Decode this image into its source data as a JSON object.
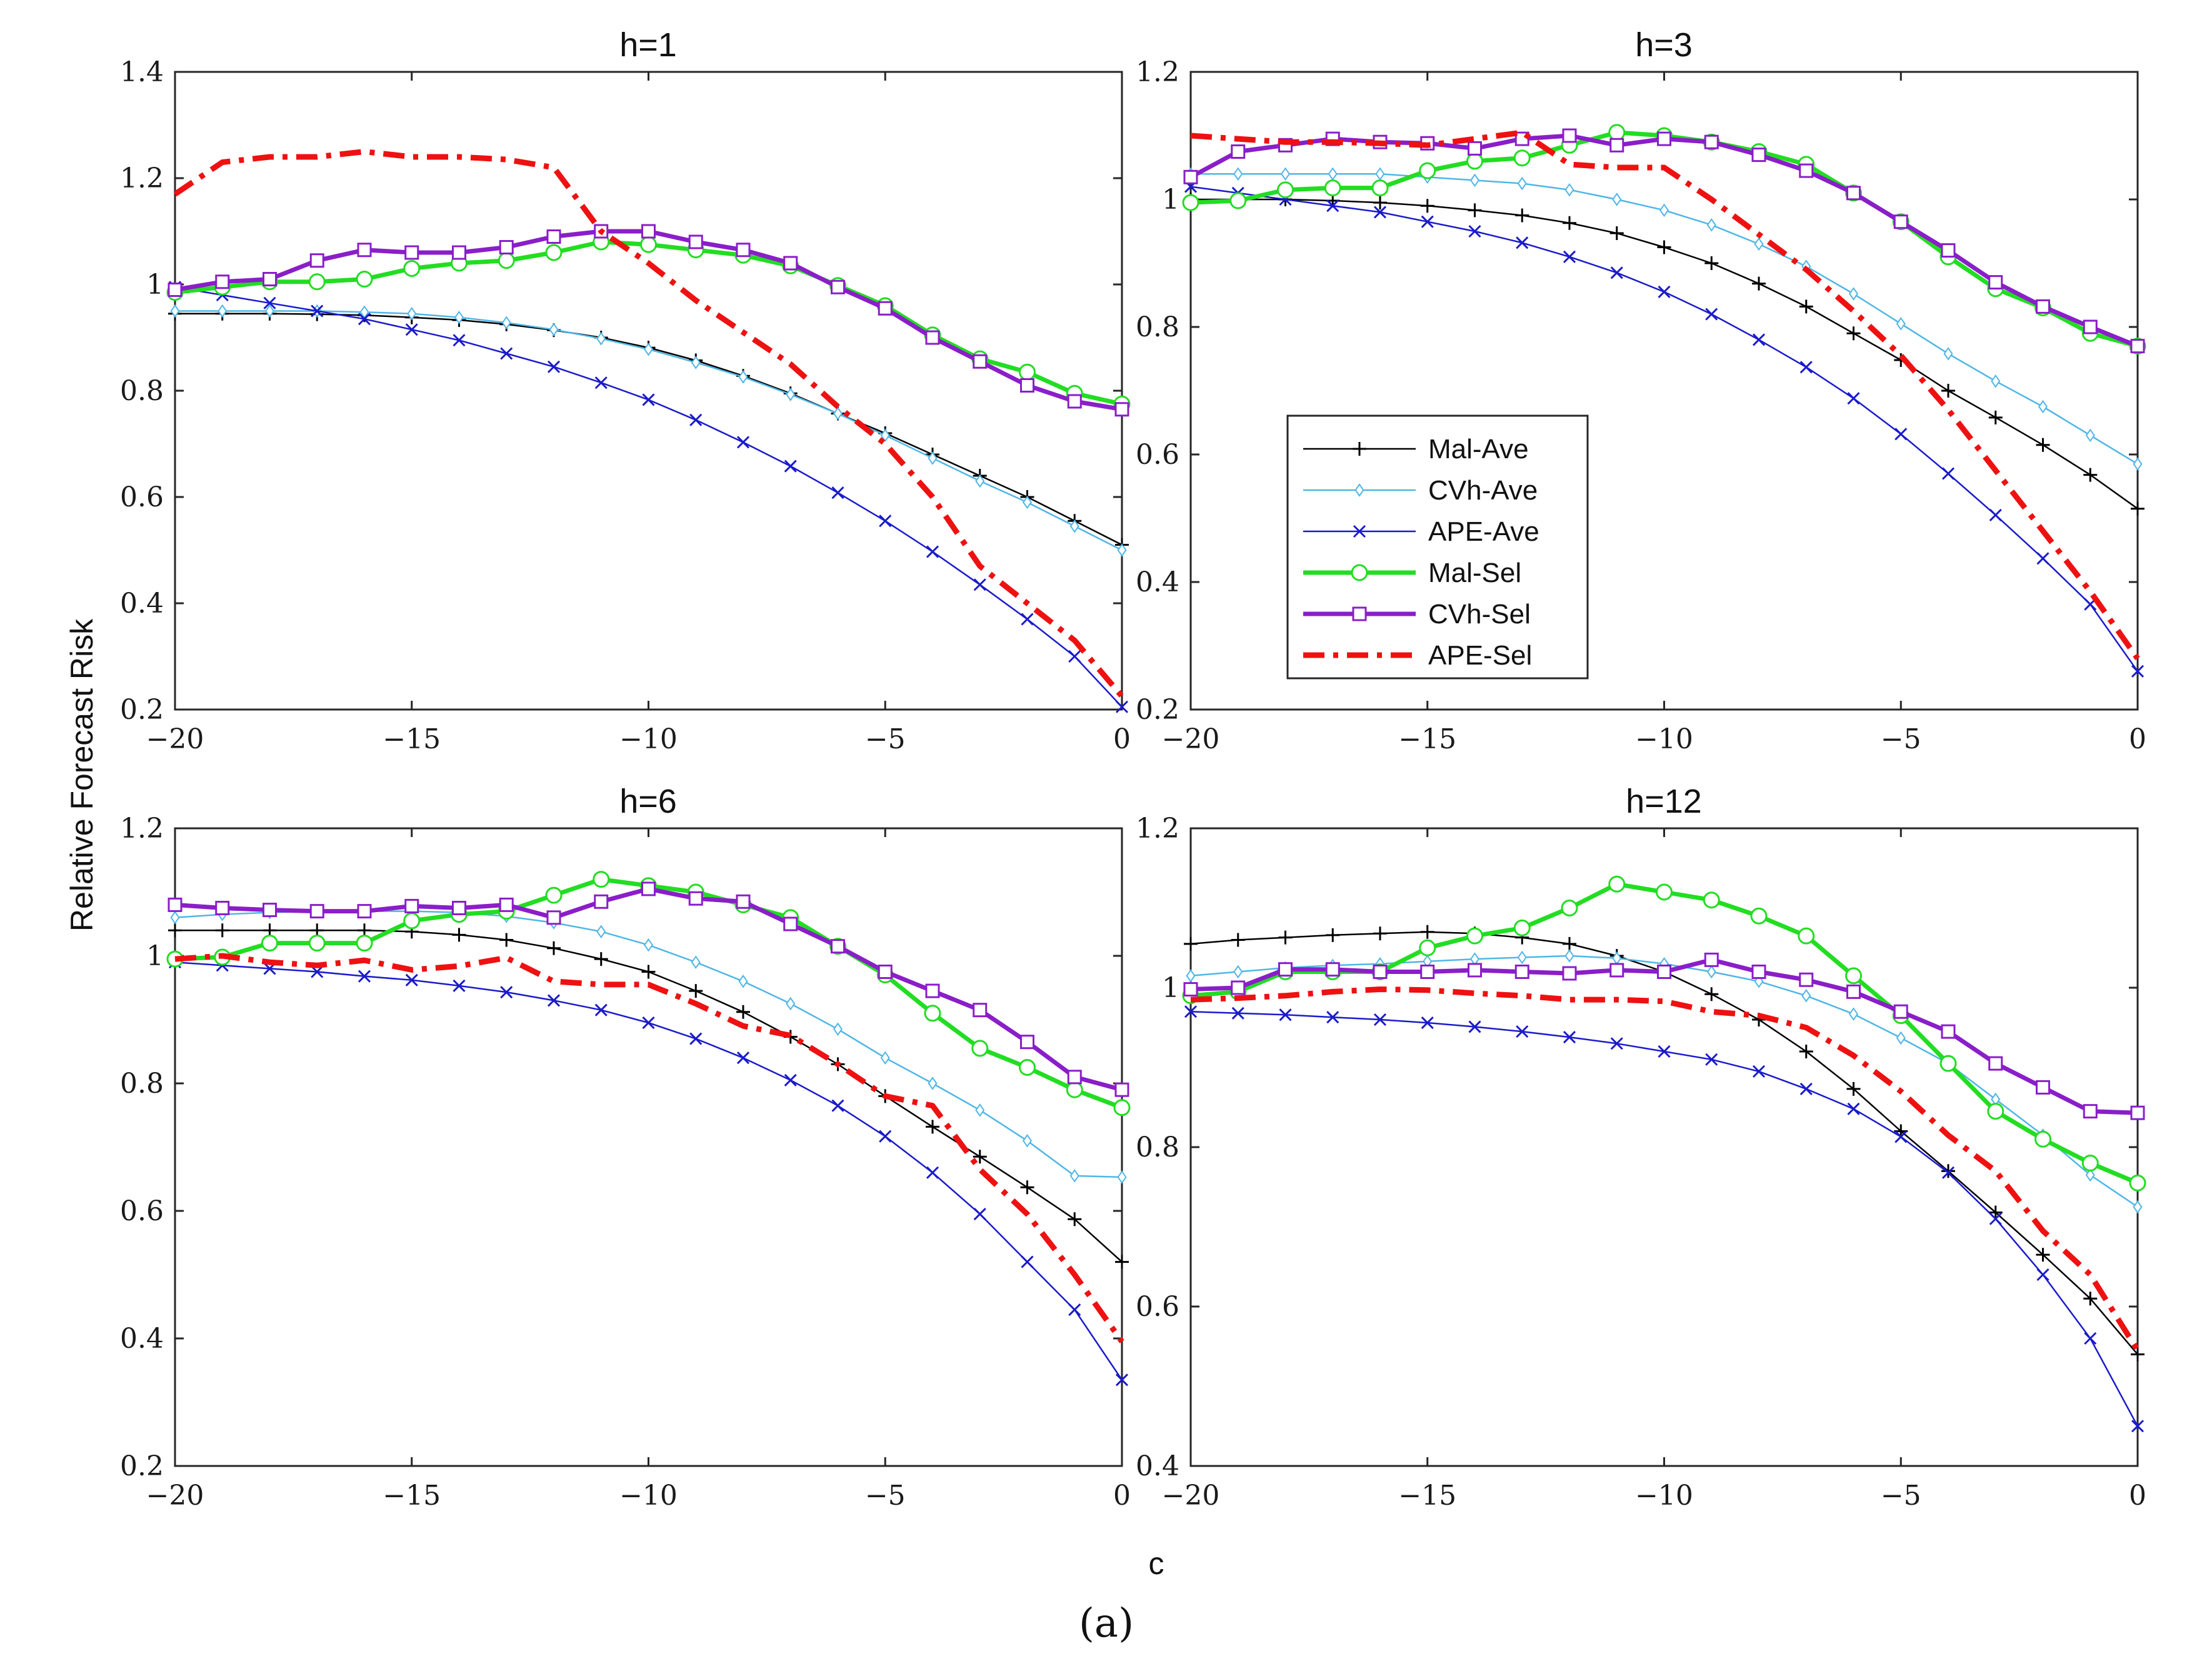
{
  "figure_caption": "(a)",
  "shared_xlabel": "c",
  "shared_ylabel": "Relative Forecast Risk",
  "legend": [
    {
      "name": "Mal-Ave",
      "color": "#000000",
      "marker": "plus",
      "style": "solid",
      "weight": "thin"
    },
    {
      "name": "CVh-Ave",
      "color": "#4fb6e6",
      "marker": "diamond",
      "style": "solid",
      "weight": "thin"
    },
    {
      "name": "APE-Ave",
      "color": "#1a1acc",
      "marker": "x",
      "style": "solid",
      "weight": "thin"
    },
    {
      "name": "Mal-Sel",
      "color": "#22dd22",
      "marker": "circle",
      "style": "solid",
      "weight": "thick"
    },
    {
      "name": "CVh-Sel",
      "color": "#8a1ec8",
      "marker": "square",
      "style": "solid",
      "weight": "thick"
    },
    {
      "name": "APE-Sel",
      "color": "#ee1111",
      "marker": "none",
      "style": "dashdot",
      "weight": "thick"
    }
  ],
  "chart_data": [
    {
      "type": "line",
      "title": "h=1",
      "xlabel": "",
      "ylabel": "",
      "xlim": [
        -20,
        0
      ],
      "ylim": [
        0.2,
        1.4
      ],
      "xticks": [
        -20,
        -15,
        -10,
        -5,
        0
      ],
      "xtick_labels": [
        "−20",
        "−15",
        "−10",
        "−5",
        "0"
      ],
      "yticks": [
        0.2,
        0.4,
        0.6,
        0.8,
        1.0,
        1.2,
        1.4
      ],
      "ytick_labels": [
        "0.2",
        "0.4",
        "0.6",
        "0.8",
        "1",
        "1.2",
        "1.4"
      ],
      "x": [
        -20,
        -19,
        -18,
        -17,
        -16,
        -15,
        -14,
        -13,
        -12,
        -11,
        -10,
        -9,
        -8,
        -7,
        -6,
        -5,
        -4,
        -3,
        -2,
        -1,
        0
      ],
      "series": [
        {
          "name": "Mal-Ave",
          "values": [
            0.945,
            0.945,
            0.945,
            0.944,
            0.942,
            0.938,
            0.933,
            0.925,
            0.914,
            0.9,
            0.881,
            0.857,
            0.828,
            0.795,
            0.757,
            0.72,
            0.68,
            0.64,
            0.6,
            0.555,
            0.51
          ]
        },
        {
          "name": "CVh-Ave",
          "values": [
            0.95,
            0.95,
            0.95,
            0.95,
            0.948,
            0.945,
            0.938,
            0.928,
            0.915,
            0.898,
            0.878,
            0.853,
            0.826,
            0.793,
            0.757,
            0.716,
            0.673,
            0.63,
            0.59,
            0.545,
            0.5
          ]
        },
        {
          "name": "APE-Ave",
          "values": [
            0.995,
            0.98,
            0.965,
            0.95,
            0.935,
            0.915,
            0.895,
            0.87,
            0.845,
            0.815,
            0.783,
            0.745,
            0.703,
            0.658,
            0.608,
            0.555,
            0.497,
            0.435,
            0.37,
            0.3,
            0.205
          ]
        },
        {
          "name": "Mal-Sel",
          "values": [
            0.985,
            0.995,
            1.005,
            1.005,
            1.01,
            1.03,
            1.04,
            1.045,
            1.06,
            1.08,
            1.075,
            1.065,
            1.055,
            1.035,
            0.998,
            0.96,
            0.905,
            0.86,
            0.835,
            0.795,
            0.775
          ]
        },
        {
          "name": "CVh-Sel",
          "values": [
            0.99,
            1.005,
            1.01,
            1.045,
            1.065,
            1.06,
            1.06,
            1.07,
            1.09,
            1.1,
            1.1,
            1.08,
            1.065,
            1.04,
            0.995,
            0.955,
            0.9,
            0.855,
            0.81,
            0.78,
            0.765
          ]
        },
        {
          "name": "APE-Sel",
          "values": [
            1.17,
            1.23,
            1.24,
            1.24,
            1.25,
            1.24,
            1.24,
            1.235,
            1.22,
            1.1,
            1.04,
            0.97,
            0.91,
            0.85,
            0.77,
            0.7,
            0.6,
            0.47,
            0.4,
            0.33,
            0.225
          ]
        }
      ]
    },
    {
      "type": "line",
      "title": "h=3",
      "xlabel": "",
      "ylabel": "",
      "xlim": [
        -20,
        0
      ],
      "ylim": [
        0.2,
        1.2
      ],
      "xticks": [
        -20,
        -15,
        -10,
        -5,
        0
      ],
      "xtick_labels": [
        "−20",
        "−15",
        "−10",
        "−5",
        "0"
      ],
      "yticks": [
        0.2,
        0.4,
        0.6,
        0.8,
        1.0,
        1.2
      ],
      "ytick_labels": [
        "0.2",
        "0.4",
        "0.6",
        "0.8",
        "1",
        "1.2"
      ],
      "x": [
        -20,
        -19,
        -18,
        -17,
        -16,
        -15,
        -14,
        -13,
        -12,
        -11,
        -10,
        -9,
        -8,
        -7,
        -6,
        -5,
        -4,
        -3,
        -2,
        -1,
        0
      ],
      "series": [
        {
          "name": "Mal-Ave",
          "values": [
            1.0,
            1.0,
            1.0,
            0.998,
            0.995,
            0.99,
            0.983,
            0.975,
            0.963,
            0.947,
            0.925,
            0.9,
            0.868,
            0.832,
            0.79,
            0.748,
            0.7,
            0.658,
            0.615,
            0.568,
            0.515
          ]
        },
        {
          "name": "CVh-Ave",
          "values": [
            1.04,
            1.04,
            1.04,
            1.04,
            1.04,
            1.035,
            1.03,
            1.025,
            1.015,
            1.0,
            0.983,
            0.96,
            0.93,
            0.895,
            0.852,
            0.805,
            0.758,
            0.715,
            0.675,
            0.63,
            0.585
          ]
        },
        {
          "name": "APE-Ave",
          "values": [
            1.02,
            1.01,
            1.0,
            0.99,
            0.98,
            0.965,
            0.95,
            0.932,
            0.91,
            0.885,
            0.855,
            0.82,
            0.78,
            0.737,
            0.688,
            0.632,
            0.57,
            0.505,
            0.437,
            0.365,
            0.26
          ]
        },
        {
          "name": "Mal-Sel",
          "values": [
            0.995,
            0.998,
            1.015,
            1.018,
            1.018,
            1.045,
            1.06,
            1.065,
            1.085,
            1.105,
            1.1,
            1.09,
            1.075,
            1.055,
            1.01,
            0.965,
            0.91,
            0.86,
            0.83,
            0.79,
            0.77
          ]
        },
        {
          "name": "CVh-Sel",
          "values": [
            1.035,
            1.075,
            1.085,
            1.095,
            1.09,
            1.088,
            1.08,
            1.095,
            1.1,
            1.085,
            1.095,
            1.09,
            1.07,
            1.045,
            1.01,
            0.965,
            0.92,
            0.87,
            0.832,
            0.8,
            0.77
          ]
        },
        {
          "name": "APE-Sel",
          "values": [
            1.1,
            1.095,
            1.09,
            1.09,
            1.088,
            1.085,
            1.095,
            1.105,
            1.055,
            1.05,
            1.05,
            1.0,
            0.945,
            0.89,
            0.825,
            0.755,
            0.67,
            0.575,
            0.48,
            0.385,
            0.28
          ]
        }
      ]
    },
    {
      "type": "line",
      "title": "h=6",
      "xlabel": "",
      "ylabel": "",
      "xlim": [
        -20,
        0
      ],
      "ylim": [
        0.2,
        1.2
      ],
      "xticks": [
        -20,
        -15,
        -10,
        -5,
        0
      ],
      "xtick_labels": [
        "−20",
        "−15",
        "−10",
        "−5",
        "0"
      ],
      "yticks": [
        0.2,
        0.4,
        0.6,
        0.8,
        1.0,
        1.2
      ],
      "ytick_labels": [
        "0.2",
        "0.4",
        "0.6",
        "0.8",
        "1",
        "1.2"
      ],
      "x": [
        -20,
        -19,
        -18,
        -17,
        -16,
        -15,
        -14,
        -13,
        -12,
        -11,
        -10,
        -9,
        -8,
        -7,
        -6,
        -5,
        -4,
        -3,
        -2,
        -1,
        0
      ],
      "series": [
        {
          "name": "Mal-Ave",
          "values": [
            1.04,
            1.04,
            1.04,
            1.04,
            1.04,
            1.038,
            1.033,
            1.025,
            1.012,
            0.995,
            0.975,
            0.945,
            0.912,
            0.873,
            0.83,
            0.78,
            0.732,
            0.685,
            0.637,
            0.587,
            0.52
          ]
        },
        {
          "name": "CVh-Ave",
          "values": [
            1.06,
            1.065,
            1.068,
            1.07,
            1.07,
            1.07,
            1.068,
            1.062,
            1.052,
            1.038,
            1.017,
            0.99,
            0.96,
            0.925,
            0.885,
            0.84,
            0.8,
            0.758,
            0.71,
            0.655,
            0.653
          ]
        },
        {
          "name": "APE-Ave",
          "values": [
            0.99,
            0.985,
            0.98,
            0.975,
            0.968,
            0.962,
            0.953,
            0.943,
            0.93,
            0.915,
            0.895,
            0.87,
            0.84,
            0.805,
            0.765,
            0.717,
            0.66,
            0.595,
            0.52,
            0.445,
            0.335
          ]
        },
        {
          "name": "Mal-Sel",
          "values": [
            0.995,
            0.998,
            1.02,
            1.02,
            1.02,
            1.055,
            1.065,
            1.07,
            1.095,
            1.12,
            1.11,
            1.1,
            1.08,
            1.06,
            1.015,
            0.97,
            0.91,
            0.855,
            0.825,
            0.79,
            0.762
          ]
        },
        {
          "name": "CVh-Sel",
          "values": [
            1.08,
            1.075,
            1.072,
            1.07,
            1.07,
            1.078,
            1.075,
            1.08,
            1.06,
            1.085,
            1.105,
            1.09,
            1.085,
            1.05,
            1.015,
            0.975,
            0.945,
            0.915,
            0.865,
            0.81,
            0.79
          ]
        },
        {
          "name": "APE-Sel",
          "values": [
            0.995,
            1.0,
            0.99,
            0.985,
            0.993,
            0.978,
            0.984,
            0.997,
            0.96,
            0.955,
            0.955,
            0.925,
            0.89,
            0.875,
            0.83,
            0.78,
            0.765,
            0.665,
            0.595,
            0.5,
            0.395
          ]
        }
      ]
    },
    {
      "type": "line",
      "title": "h=12",
      "xlabel": "",
      "ylabel": "",
      "xlim": [
        -20,
        0
      ],
      "ylim": [
        0.4,
        1.2
      ],
      "xticks": [
        -20,
        -15,
        -10,
        -5,
        0
      ],
      "xtick_labels": [
        "−20",
        "−15",
        "−10",
        "−5",
        "0"
      ],
      "yticks": [
        0.4,
        0.6,
        0.8,
        1.0,
        1.2
      ],
      "ytick_labels": [
        "0.4",
        "0.6",
        "0.8",
        "1",
        "1.2"
      ],
      "x": [
        -20,
        -19,
        -18,
        -17,
        -16,
        -15,
        -14,
        -13,
        -12,
        -11,
        -10,
        -9,
        -8,
        -7,
        -6,
        -5,
        -4,
        -3,
        -2,
        -1,
        0
      ],
      "series": [
        {
          "name": "Mal-Ave",
          "values": [
            1.055,
            1.06,
            1.063,
            1.066,
            1.068,
            1.07,
            1.068,
            1.063,
            1.055,
            1.04,
            1.02,
            0.992,
            0.96,
            0.92,
            0.873,
            0.82,
            0.77,
            0.718,
            0.665,
            0.61,
            0.54
          ]
        },
        {
          "name": "CVh-Ave",
          "values": [
            1.015,
            1.02,
            1.025,
            1.028,
            1.03,
            1.033,
            1.036,
            1.038,
            1.04,
            1.037,
            1.03,
            1.02,
            1.008,
            0.99,
            0.967,
            0.937,
            0.905,
            0.86,
            0.815,
            0.765,
            0.725
          ]
        },
        {
          "name": "APE-Ave",
          "values": [
            0.97,
            0.968,
            0.966,
            0.963,
            0.96,
            0.956,
            0.951,
            0.945,
            0.938,
            0.93,
            0.92,
            0.91,
            0.895,
            0.873,
            0.848,
            0.813,
            0.768,
            0.71,
            0.64,
            0.56,
            0.45
          ]
        },
        {
          "name": "Mal-Sel",
          "values": [
            0.99,
            0.995,
            1.02,
            1.02,
            1.02,
            1.05,
            1.065,
            1.075,
            1.1,
            1.13,
            1.12,
            1.11,
            1.09,
            1.065,
            1.015,
            0.965,
            0.905,
            0.845,
            0.81,
            0.78,
            0.755
          ]
        },
        {
          "name": "CVh-Sel",
          "values": [
            0.998,
            1.0,
            1.023,
            1.023,
            1.02,
            1.02,
            1.022,
            1.02,
            1.018,
            1.022,
            1.02,
            1.035,
            1.02,
            1.01,
            0.995,
            0.97,
            0.945,
            0.905,
            0.875,
            0.845,
            0.843
          ]
        },
        {
          "name": "APE-Sel",
          "values": [
            0.985,
            0.987,
            0.99,
            0.995,
            0.998,
            0.997,
            0.993,
            0.99,
            0.985,
            0.985,
            0.983,
            0.97,
            0.965,
            0.95,
            0.915,
            0.87,
            0.815,
            0.77,
            0.695,
            0.64,
            0.545
          ]
        }
      ]
    }
  ]
}
